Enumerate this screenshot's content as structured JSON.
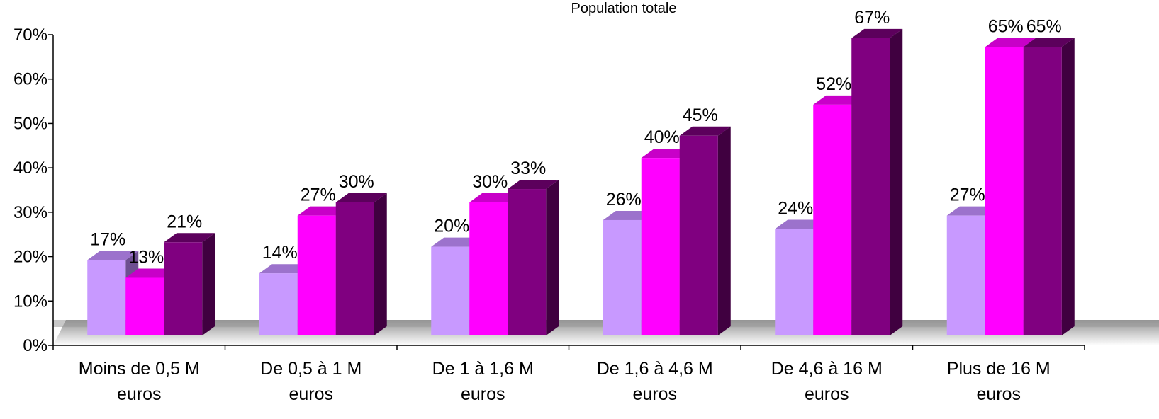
{
  "chart_data": {
    "type": "bar",
    "title": "Population totale",
    "categories": [
      [
        "Moins de 0,5 M",
        "euros"
      ],
      [
        "De 0,5 à 1 M",
        "euros"
      ],
      [
        "De 1 à 1,6 M",
        "euros"
      ],
      [
        "De 1,6 à 4,6 M",
        "euros"
      ],
      [
        "De 4,6 à 16 M",
        "euros"
      ],
      [
        "Plus de 16 M",
        "euros"
      ]
    ],
    "series": [
      {
        "values": [
          17,
          14,
          20,
          26,
          24,
          27
        ],
        "labels": [
          "17%",
          "14%",
          "20%",
          "26%",
          "24%",
          "27%"
        ]
      },
      {
        "values": [
          13,
          27,
          30,
          40,
          52,
          65
        ],
        "labels": [
          "13%",
          "27%",
          "30%",
          "40%",
          "52%",
          "65%"
        ]
      },
      {
        "values": [
          21,
          30,
          33,
          45,
          67,
          65
        ],
        "labels": [
          "21%",
          "30%",
          "33%",
          "45%",
          "67%",
          "65%"
        ]
      }
    ],
    "y_ticks": [
      "0%",
      "10%",
      "20%",
      "30%",
      "40%",
      "50%",
      "60%",
      "70%"
    ],
    "ylim": [
      0,
      70
    ],
    "grid": false,
    "legend": "none",
    "colors": {
      "series": [
        {
          "front": "#c899ff",
          "top": "#9c72cc",
          "side": "#6e4f91"
        },
        {
          "front": "#ff00ff",
          "top": "#c800c8",
          "side": "#990099"
        },
        {
          "front": "#800080",
          "top": "#5c005c",
          "side": "#400040"
        }
      ],
      "floor": "#c0c0c0"
    }
  }
}
